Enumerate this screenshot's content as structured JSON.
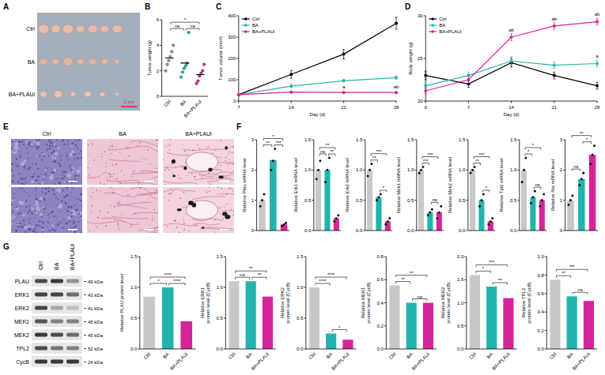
{
  "panel_letters": [
    "A",
    "B",
    "C",
    "D",
    "E",
    "F",
    "G"
  ],
  "photo": {
    "rows": [
      "Ctrl",
      "BA",
      "BA+PLAUi"
    ],
    "scale_label": "1 cm"
  },
  "histology": {
    "columns": [
      "Ctrl",
      "BA",
      "BA+PLAUi"
    ]
  },
  "blot": {
    "lanes": [
      "Ctrl",
      "BA",
      "BA+PLAUi"
    ],
    "bands": [
      {
        "name": "PLAU",
        "size": "49 kDa"
      },
      {
        "name": "ERK1",
        "size": "43 kDa"
      },
      {
        "name": "ERK2",
        "size": "41 kDa"
      },
      {
        "name": "MEK1",
        "size": "45 kDa"
      },
      {
        "name": "MEK2",
        "size": "45 kDa"
      },
      {
        "name": "TPL2",
        "size": "52 kDa"
      },
      {
        "name": "CycB",
        "size": "24 kDa"
      }
    ]
  },
  "chart_data": [
    {
      "type": "dot",
      "ylabel": "Tumor weight (g)",
      "categories": [
        "Ctrl",
        "BA",
        "BA+PLAUi"
      ],
      "colors": [
        "#9a9a9a",
        "#22b3ae",
        "#d6249a"
      ],
      "values": [
        3.0,
        2.6,
        1.7
      ],
      "points": [
        [
          2.0,
          2.5,
          2.8,
          3.1,
          3.5,
          4.0
        ],
        [
          1.5,
          1.9,
          2.2,
          2.4,
          2.6,
          5.0
        ],
        [
          1.0,
          1.2,
          1.6,
          1.8,
          2.0,
          2.5
        ]
      ],
      "ylim": [
        0,
        6
      ],
      "yticks": [
        0,
        2,
        4,
        6
      ],
      "comparisons": [
        {
          "groups": [
            0,
            1
          ],
          "label": "ns"
        },
        {
          "groups": [
            1,
            2
          ],
          "label": "ns"
        },
        {
          "groups": [
            0,
            2
          ],
          "label": "*"
        }
      ]
    },
    {
      "type": "line",
      "xlabel": "Day (d)",
      "ylabel": "Tumor volume (mm³)",
      "x": [
        7,
        14,
        21,
        28
      ],
      "xlim": [
        7,
        28
      ],
      "xticks": [
        7,
        14,
        21,
        28
      ],
      "ylim": [
        0,
        400
      ],
      "yticks": [
        0,
        100,
        200,
        300,
        400
      ],
      "marker": "circle",
      "legend": "upper left",
      "series": [
        {
          "name": "Ctrl",
          "color": "#000000",
          "values": [
            30,
            125,
            220,
            365
          ],
          "errors": [
            5,
            18,
            22,
            28
          ]
        },
        {
          "name": "BA",
          "color": "#2bb3b1",
          "values": [
            30,
            70,
            95,
            110
          ],
          "errors": [
            4,
            8,
            6,
            8
          ]
        },
        {
          "name": "BA+PLAUi",
          "color": "#d6249a",
          "values": [
            30,
            42,
            40,
            40
          ],
          "errors": [
            3,
            4,
            4,
            4
          ]
        }
      ],
      "annotations": [
        {
          "series": 2,
          "x": 21,
          "label": "a"
        },
        {
          "series": 2,
          "x": 28,
          "label": "ab"
        }
      ]
    },
    {
      "type": "line",
      "xlabel": "Day (d)",
      "ylabel": "Body weight (g)",
      "x": [
        0,
        7,
        14,
        21,
        28
      ],
      "xlim": [
        0,
        28
      ],
      "xticks": [
        0,
        7,
        14,
        21,
        28
      ],
      "ylim": [
        20,
        30
      ],
      "yticks": [
        20,
        25,
        30
      ],
      "marker": "circle",
      "legend": "upper left",
      "series": [
        {
          "name": "Ctrl",
          "color": "#000000",
          "values": [
            23,
            22,
            24.5,
            23,
            21.8
          ],
          "errors": [
            0.5,
            0.4,
            0.5,
            0.4,
            0.4
          ]
        },
        {
          "name": "BA",
          "color": "#2bb3b1",
          "values": [
            21.8,
            23,
            24.7,
            24.2,
            24.4
          ],
          "errors": [
            0.4,
            0.4,
            0.5,
            0.4,
            0.4
          ]
        },
        {
          "name": "BA+PLAUi",
          "color": "#d6249a",
          "values": [
            21.2,
            22.5,
            27.5,
            28.8,
            29.3
          ],
          "errors": [
            0.4,
            0.4,
            0.4,
            0.4,
            0.4
          ]
        }
      ],
      "annotations": [
        {
          "series": 2,
          "x": 14,
          "label": "ab"
        },
        {
          "series": 2,
          "x": 21,
          "label": "ab"
        },
        {
          "series": 2,
          "x": 28,
          "label": "ab"
        },
        {
          "series": 1,
          "x": 28,
          "label": "a"
        }
      ]
    },
    {
      "type": "bar",
      "ylabel": "Relative Plau mRNA level",
      "categories": [
        null,
        null,
        null
      ],
      "tick_labels": "y",
      "colors": [
        "#c8c8c8",
        "#22b3ae",
        "#d6249a"
      ],
      "values": [
        1.0,
        2.33,
        0.2
      ],
      "points": [
        [
          0.8,
          1.0,
          1.2
        ],
        [
          2.0,
          2.3,
          2.7
        ],
        [
          0.15,
          0.2,
          0.25
        ]
      ],
      "ylim": [
        0,
        3
      ],
      "yticks": [
        0,
        1,
        2,
        3
      ],
      "comparisons": [
        {
          "groups": [
            0,
            1
          ],
          "label": "**"
        },
        {
          "groups": [
            1,
            2
          ],
          "label": "***"
        },
        {
          "groups": [
            0,
            2
          ],
          "label": "*"
        }
      ]
    },
    {
      "type": "bar",
      "ylabel": "Relative Erk1 mRNA level",
      "categories": [
        null,
        null,
        null
      ],
      "tick_labels": "y",
      "colors": [
        "#c8c8c8",
        "#22b3ae",
        "#d6249a"
      ],
      "values": [
        1.0,
        1.0,
        0.2
      ],
      "points": [
        [
          0.85,
          1.0,
          1.15
        ],
        [
          0.8,
          1.0,
          1.2
        ],
        [
          0.15,
          0.2,
          0.25
        ]
      ],
      "ylim": [
        0,
        1.5
      ],
      "yticks": [
        {
          "value": 0,
          "label": "0.0"
        },
        0.5,
        {
          "value": 1,
          "label": "1.0"
        },
        1.5
      ],
      "comparisons": [
        {
          "groups": [
            0,
            1
          ],
          "label": "ns"
        },
        {
          "groups": [
            1,
            2
          ],
          "label": "**"
        },
        {
          "groups": [
            0,
            2
          ],
          "label": "**"
        }
      ]
    },
    {
      "type": "bar",
      "ylabel": "Relative Erk2 mRNA level",
      "categories": [
        null,
        null,
        null
      ],
      "tick_labels": "y",
      "colors": [
        "#c8c8c8",
        "#22b3ae",
        "#d6249a"
      ],
      "values": [
        1.0,
        0.55,
        0.15
      ],
      "points": [
        [
          0.9,
          1.0,
          1.1
        ],
        [
          0.5,
          0.55,
          0.6
        ],
        [
          0.1,
          0.15,
          0.2
        ]
      ],
      "ylim": [
        0,
        1.5
      ],
      "yticks": [
        {
          "value": 0,
          "label": "0.0"
        },
        0.5,
        {
          "value": 1,
          "label": "1.0"
        },
        1.5
      ],
      "comparisons": [
        {
          "groups": [
            0,
            1
          ],
          "label": "**"
        },
        {
          "groups": [
            1,
            2
          ],
          "label": "*"
        },
        {
          "groups": [
            0,
            2
          ],
          "label": "***"
        }
      ]
    },
    {
      "type": "bar",
      "ylabel": "Relative Mek1 mRNA level",
      "categories": [
        null,
        null,
        null
      ],
      "tick_labels": "y",
      "colors": [
        "#c8c8c8",
        "#22b3ae",
        "#d6249a"
      ],
      "values": [
        1.0,
        0.3,
        0.3
      ],
      "points": [
        [
          0.95,
          1.0,
          1.05
        ],
        [
          0.25,
          0.3,
          0.35
        ],
        [
          0.2,
          0.3,
          0.4
        ]
      ],
      "ylim": [
        0,
        1.5
      ],
      "yticks": [
        {
          "value": 0,
          "label": "0.0"
        },
        0.5,
        {
          "value": 1,
          "label": "1.0"
        },
        1.5
      ],
      "comparisons": [
        {
          "groups": [
            0,
            1
          ],
          "label": "***"
        },
        {
          "groups": [
            1,
            2
          ],
          "label": "ns"
        },
        {
          "groups": [
            0,
            2
          ],
          "label": "***"
        }
      ]
    },
    {
      "type": "bar",
      "ylabel": "Relative Mek2 mRNA level",
      "categories": [
        null,
        null,
        null
      ],
      "tick_labels": "y",
      "colors": [
        "#c8c8c8",
        "#22b3ae",
        "#d6249a"
      ],
      "values": [
        1.0,
        0.5,
        0.15
      ],
      "points": [
        [
          0.95,
          1.0,
          1.05
        ],
        [
          0.4,
          0.5,
          0.6
        ],
        [
          0.1,
          0.15,
          0.2
        ]
      ],
      "ylim": [
        0,
        1.5
      ],
      "yticks": [
        {
          "value": 0,
          "label": "0.0"
        },
        0.5,
        {
          "value": 1,
          "label": "1.0"
        },
        1.5
      ],
      "comparisons": [
        {
          "groups": [
            0,
            1
          ],
          "label": "**"
        },
        {
          "groups": [
            1,
            2
          ],
          "label": "*"
        },
        {
          "groups": [
            0,
            2
          ],
          "label": "***"
        }
      ]
    },
    {
      "type": "bar",
      "ylabel": "Relative Tpl2 mRNA level",
      "categories": [
        null,
        null,
        null
      ],
      "tick_labels": "y",
      "colors": [
        "#c8c8c8",
        "#22b3ae",
        "#d6249a"
      ],
      "values": [
        1.0,
        0.55,
        0.5
      ],
      "points": [
        [
          0.8,
          1.0,
          1.2
        ],
        [
          0.45,
          0.55,
          0.65
        ],
        [
          0.4,
          0.5,
          0.6
        ]
      ],
      "ylim": [
        0,
        1.5
      ],
      "yticks": [
        {
          "value": 0,
          "label": "0.0"
        },
        0.5,
        {
          "value": 1,
          "label": "1.0"
        },
        1.5
      ],
      "comparisons": [
        {
          "groups": [
            0,
            1
          ],
          "label": "*"
        },
        {
          "groups": [
            1,
            2
          ],
          "label": "ns"
        },
        {
          "groups": [
            0,
            2
          ],
          "label": "*"
        }
      ]
    },
    {
      "type": "bar",
      "ylabel": "Relative Nis mRNA level",
      "categories": [
        null,
        null,
        null
      ],
      "tick_labels": "y",
      "colors": [
        "#c8c8c8",
        "#22b3ae",
        "#d6249a"
      ],
      "values": [
        1.0,
        1.7,
        2.5
      ],
      "points": [
        [
          0.85,
          1.0,
          1.15
        ],
        [
          1.5,
          1.7,
          1.9
        ],
        [
          2.2,
          2.5,
          2.8
        ]
      ],
      "ylim": [
        0,
        3
      ],
      "yticks": [
        0,
        1,
        2,
        3
      ],
      "comparisons": [
        {
          "groups": [
            0,
            1
          ],
          "label": "ns"
        },
        {
          "groups": [
            1,
            2
          ],
          "label": "*"
        },
        {
          "groups": [
            0,
            2
          ],
          "label": "**"
        }
      ]
    },
    {
      "type": "bar",
      "ylabel": "Relative PLAU protein level",
      "categories": [
        "Ctrl",
        "BA",
        "BA+PLAUi"
      ],
      "colors": [
        "#c8c8c8",
        "#22b3ae",
        "#d6249a"
      ],
      "values": [
        0.85,
        1.0,
        0.45
      ],
      "ylim": [
        0,
        1.5
      ],
      "yticks": [
        {
          "value": 0,
          "label": "0.0"
        },
        0.5,
        {
          "value": 1,
          "label": "1.0"
        },
        1.5
      ],
      "comparisons": [
        {
          "groups": [
            0,
            1
          ],
          "label": "*"
        },
        {
          "groups": [
            1,
            2
          ],
          "label": "****"
        },
        {
          "groups": [
            0,
            2
          ],
          "label": "****"
        }
      ]
    },
    {
      "type": "bar",
      "ylabel": "Relative ERK1 protein level (CycB)",
      "categories": [
        "Ctrl",
        "BA",
        "BA+PLAUi"
      ],
      "colors": [
        "#c8c8c8",
        "#22b3ae",
        "#d6249a"
      ],
      "values": [
        1.1,
        1.1,
        0.85
      ],
      "ylim": [
        0,
        1.5
      ],
      "yticks": [
        {
          "value": 0,
          "label": "0.0"
        },
        0.5,
        {
          "value": 1,
          "label": "1.0"
        },
        1.5
      ],
      "comparisons": [
        {
          "groups": [
            0,
            1
          ],
          "label": "ns"
        },
        {
          "groups": [
            1,
            2
          ],
          "label": "**"
        },
        {
          "groups": [
            0,
            2
          ],
          "label": "**"
        }
      ]
    },
    {
      "type": "bar",
      "ylabel": "Relative ERK2 protein level (CycB)",
      "categories": [
        "Ctrl",
        "BA",
        "BA+PLAUi"
      ],
      "colors": [
        "#c8c8c8",
        "#22b3ae",
        "#d6249a"
      ],
      "values": [
        1.0,
        0.25,
        0.15
      ],
      "ylim": [
        0,
        1.5
      ],
      "yticks": [
        {
          "value": 0,
          "label": "0.0"
        },
        0.5,
        {
          "value": 1,
          "label": "1.0"
        },
        1.5
      ],
      "comparisons": [
        {
          "groups": [
            0,
            1
          ],
          "label": "****"
        },
        {
          "groups": [
            1,
            2
          ],
          "label": "*"
        },
        {
          "groups": [
            0,
            2
          ],
          "label": "****"
        }
      ]
    },
    {
      "type": "bar",
      "ylabel": "Relative MEK1 protein level (CycB)",
      "categories": [
        "Ctrl",
        "BA",
        "BA+PLAUi"
      ],
      "colors": [
        "#c8c8c8",
        "#22b3ae",
        "#d6249a"
      ],
      "values": [
        0.55,
        0.4,
        0.4
      ],
      "ylim": [
        0,
        0.8
      ],
      "yticks": [
        {
          "value": 0,
          "label": "0.0"
        },
        0.2,
        0.4,
        0.6,
        0.8
      ],
      "comparisons": [
        {
          "groups": [
            0,
            1
          ],
          "label": "**"
        },
        {
          "groups": [
            1,
            2
          ],
          "label": "ns"
        },
        {
          "groups": [
            0,
            2
          ],
          "label": "**"
        }
      ]
    },
    {
      "type": "bar",
      "ylabel": "Relative MEK2 protein level (CycB)",
      "categories": [
        "Ctrl",
        "BA",
        "BA+PLAUi"
      ],
      "colors": [
        "#c8c8c8",
        "#22b3ae",
        "#d6249a"
      ],
      "values": [
        1.6,
        1.35,
        1.1
      ],
      "ylim": [
        0,
        2
      ],
      "yticks": [
        {
          "value": 0,
          "label": "0.0"
        },
        0.5,
        {
          "value": 1,
          "label": "1.0"
        },
        1.5,
        {
          "value": 2,
          "label": "2.0"
        }
      ],
      "comparisons": [
        {
          "groups": [
            0,
            1
          ],
          "label": "*"
        },
        {
          "groups": [
            1,
            2
          ],
          "label": "**"
        },
        {
          "groups": [
            0,
            2
          ],
          "label": "***"
        }
      ]
    },
    {
      "type": "bar",
      "ylabel": "Relative TPL2 protein level (CycB)",
      "categories": [
        "Ctrl",
        "BA",
        "BA+PLAUi"
      ],
      "colors": [
        "#c8c8c8",
        "#22b3ae",
        "#d6249a"
      ],
      "values": [
        0.75,
        0.57,
        0.52
      ],
      "ylim": [
        0,
        1
      ],
      "yticks": [
        {
          "value": 0,
          "label": "0.0"
        },
        0.2,
        0.4,
        0.6,
        0.8,
        {
          "value": 1,
          "label": "1.0"
        }
      ],
      "comparisons": [
        {
          "groups": [
            0,
            1
          ],
          "label": "**"
        },
        {
          "groups": [
            1,
            2
          ],
          "label": "ns"
        },
        {
          "groups": [
            0,
            2
          ],
          "label": "***"
        }
      ]
    }
  ]
}
